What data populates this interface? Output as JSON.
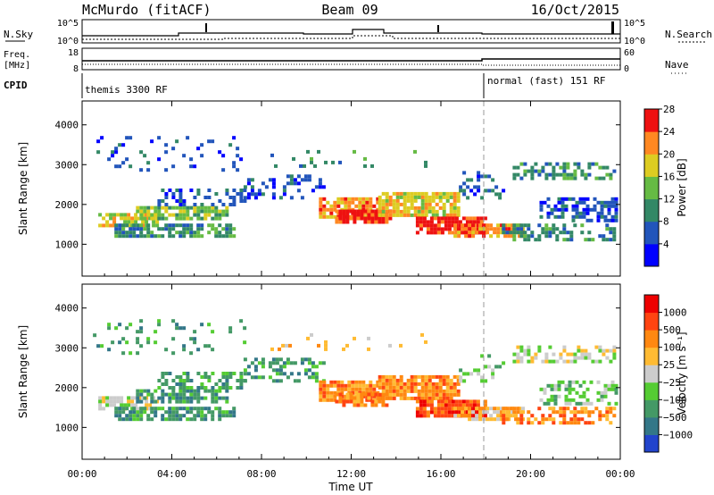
{
  "header": {
    "radar": "McMurdo (fitACF)",
    "beam": "Beam 09",
    "date": "16/Oct/2015"
  },
  "top_panels": {
    "nsky_label": "N.Sky",
    "nsky_left_ticks": [
      "10^5",
      "10^0"
    ],
    "nsky_right_ticks": [
      "10^5",
      "10^0"
    ],
    "nsearch_label": "N.Search",
    "freq_label_line1": "Freq.",
    "freq_label_line2": "[MHz]",
    "freq_ticks": [
      "18",
      "8"
    ],
    "nave_ticks": [
      "60",
      "0"
    ],
    "nave_label": "Nave",
    "cpid_label": "CPID",
    "cpid_left": "themis 3300 RF",
    "cpid_right": "normal (fast) 151 RF"
  },
  "chart_data": [
    {
      "type": "heatmap",
      "name": "power",
      "ylabel": "Slant Range [km]",
      "xlabel": "",
      "colorbar_label": "Power [dB]",
      "x_ticks": [
        "00:00",
        "04:00",
        "08:00",
        "12:00",
        "16:00",
        "20:00",
        "00:00"
      ],
      "y_ticks": [
        "1000",
        "2000",
        "3000",
        "4000"
      ],
      "ylim": [
        200,
        4600
      ],
      "colorbar_ticks": [
        "4",
        "8",
        "12",
        "16",
        "20",
        "24",
        "28"
      ],
      "colors": [
        "#0000ff",
        "#2255bb",
        "#338866",
        "#66bb44",
        "#ddcc22",
        "#ff8822",
        "#ee1111"
      ]
    },
    {
      "type": "heatmap",
      "name": "velocity",
      "ylabel": "Slant Range [km]",
      "xlabel": "Time UT",
      "colorbar_label": "Velocity [m s⁻¹]",
      "x_ticks": [
        "00:00",
        "04:00",
        "08:00",
        "12:00",
        "16:00",
        "20:00",
        "00:00"
      ],
      "y_ticks": [
        "1000",
        "2000",
        "3000",
        "4000"
      ],
      "ylim": [
        200,
        4600
      ],
      "colorbar_ticks": [
        "1000",
        "500",
        "100",
        "25",
        "−25",
        "−100",
        "−500",
        "−1000"
      ],
      "colors": [
        "#2244cc",
        "#337788",
        "#449966",
        "#55cc33",
        "#cccccc",
        "#ffbb33",
        "#ff8811",
        "#ff4411",
        "#ee0000"
      ]
    }
  ]
}
